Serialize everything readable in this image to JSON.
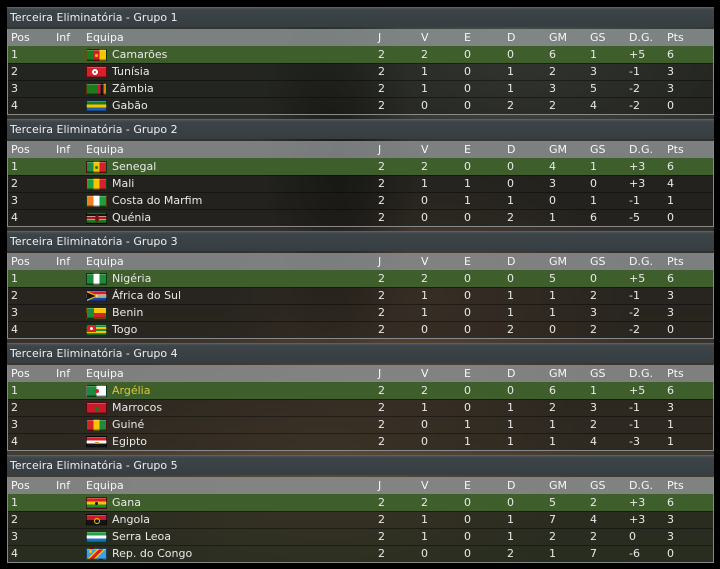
{
  "columns": {
    "pos": "Pos",
    "inf": "Inf",
    "team": "Equipa",
    "stats": [
      "J",
      "V",
      "E",
      "D",
      "GM",
      "GS",
      "D.G.",
      "Pts"
    ]
  },
  "colors": {
    "leader_row": "#3e5e2c",
    "user_team_text": "#d6c93a"
  },
  "groups": [
    {
      "title": "Terceira Eliminatória - Grupo 1",
      "rows": [
        {
          "pos": "1",
          "team": "Camarões",
          "flag": "cameroon",
          "leader": true,
          "stats": [
            "2",
            "2",
            "0",
            "0",
            "6",
            "1",
            "+5",
            "6"
          ]
        },
        {
          "pos": "2",
          "team": "Tunísia",
          "flag": "tunisia",
          "stats": [
            "2",
            "1",
            "0",
            "1",
            "2",
            "3",
            "-1",
            "3"
          ]
        },
        {
          "pos": "3",
          "team": "Zâmbia",
          "flag": "zambia",
          "stats": [
            "2",
            "1",
            "0",
            "1",
            "3",
            "5",
            "-2",
            "3"
          ]
        },
        {
          "pos": "4",
          "team": "Gabão",
          "flag": "gabon",
          "stats": [
            "2",
            "0",
            "0",
            "2",
            "2",
            "4",
            "-2",
            "0"
          ]
        }
      ]
    },
    {
      "title": "Terceira Eliminatória - Grupo 2",
      "rows": [
        {
          "pos": "1",
          "team": "Senegal",
          "flag": "senegal",
          "leader": true,
          "stats": [
            "2",
            "2",
            "0",
            "0",
            "4",
            "1",
            "+3",
            "6"
          ]
        },
        {
          "pos": "2",
          "team": "Mali",
          "flag": "mali",
          "stats": [
            "2",
            "1",
            "1",
            "0",
            "3",
            "0",
            "+3",
            "4"
          ]
        },
        {
          "pos": "3",
          "team": "Costa do Marfim",
          "flag": "ivory-coast",
          "stats": [
            "2",
            "0",
            "1",
            "1",
            "0",
            "1",
            "-1",
            "1"
          ]
        },
        {
          "pos": "4",
          "team": "Quénia",
          "flag": "kenya",
          "stats": [
            "2",
            "0",
            "0",
            "2",
            "1",
            "6",
            "-5",
            "0"
          ]
        }
      ]
    },
    {
      "title": "Terceira Eliminatória - Grupo 3",
      "rows": [
        {
          "pos": "1",
          "team": "Nigéria",
          "flag": "nigeria",
          "leader": true,
          "stats": [
            "2",
            "2",
            "0",
            "0",
            "5",
            "0",
            "+5",
            "6"
          ]
        },
        {
          "pos": "2",
          "team": "África do Sul",
          "flag": "south-africa",
          "stats": [
            "2",
            "1",
            "0",
            "1",
            "1",
            "2",
            "-1",
            "3"
          ]
        },
        {
          "pos": "3",
          "team": "Benin",
          "flag": "benin",
          "stats": [
            "2",
            "1",
            "0",
            "1",
            "1",
            "3",
            "-2",
            "3"
          ]
        },
        {
          "pos": "4",
          "team": "Togo",
          "flag": "togo",
          "stats": [
            "2",
            "0",
            "0",
            "2",
            "0",
            "2",
            "-2",
            "0"
          ]
        }
      ]
    },
    {
      "title": "Terceira Eliminatória - Grupo 4",
      "rows": [
        {
          "pos": "1",
          "team": "Argélia",
          "flag": "algeria",
          "leader": true,
          "user_team": true,
          "stats": [
            "2",
            "2",
            "0",
            "0",
            "6",
            "1",
            "+5",
            "6"
          ]
        },
        {
          "pos": "2",
          "team": "Marrocos",
          "flag": "morocco",
          "stats": [
            "2",
            "1",
            "0",
            "1",
            "2",
            "3",
            "-1",
            "3"
          ]
        },
        {
          "pos": "3",
          "team": "Guiné",
          "flag": "guinea",
          "stats": [
            "2",
            "0",
            "1",
            "1",
            "1",
            "2",
            "-1",
            "1"
          ]
        },
        {
          "pos": "4",
          "team": "Egipto",
          "flag": "egypt",
          "stats": [
            "2",
            "0",
            "1",
            "1",
            "1",
            "4",
            "-3",
            "1"
          ]
        }
      ]
    },
    {
      "title": "Terceira Eliminatória - Grupo 5",
      "rows": [
        {
          "pos": "1",
          "team": "Gana",
          "flag": "ghana",
          "leader": true,
          "stats": [
            "2",
            "2",
            "0",
            "0",
            "5",
            "2",
            "+3",
            "6"
          ]
        },
        {
          "pos": "2",
          "team": "Angola",
          "flag": "angola",
          "stats": [
            "2",
            "1",
            "0",
            "1",
            "7",
            "4",
            "+3",
            "3"
          ]
        },
        {
          "pos": "3",
          "team": "Serra Leoa",
          "flag": "sierra-leone",
          "stats": [
            "2",
            "1",
            "0",
            "1",
            "2",
            "2",
            "0",
            "3"
          ]
        },
        {
          "pos": "4",
          "team": "Rep. do Congo",
          "flag": "dr-congo",
          "stats": [
            "2",
            "0",
            "0",
            "2",
            "1",
            "7",
            "-6",
            "0"
          ]
        }
      ]
    }
  ]
}
